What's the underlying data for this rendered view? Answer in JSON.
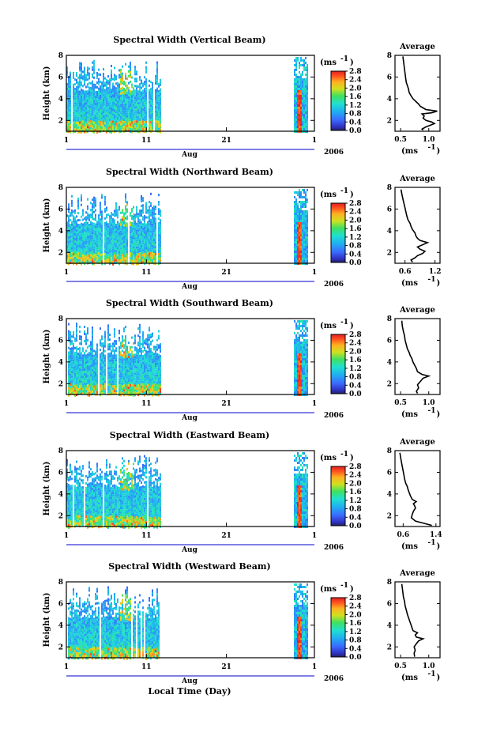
{
  "chart_data": [
    {
      "type": "heatmap",
      "title": "Spectral Width (Vertical Beam)",
      "ylabel": "Height (km)",
      "ylim": [
        1,
        8
      ],
      "yticks": [
        "2",
        "4",
        "6",
        "8"
      ],
      "xticks": [
        "1",
        "11",
        "21",
        "1"
      ],
      "xlabel2": "Aug",
      "year": "2006",
      "colorbar": {
        "unit": "(ms",
        "unit_sup": "-1",
        "unit_close": ")",
        "ticks": [
          "0.0",
          "0.4",
          "0.8",
          "1.2",
          "1.6",
          "2.0",
          "2.4",
          "2.8"
        ],
        "range": [
          0,
          2.8
        ]
      },
      "average": {
        "title": "Average",
        "xlabel": "(ms",
        "xlabel_sup": "-1",
        "xlabel_close": ")",
        "xticks": [
          "0.5",
          "1.0"
        ],
        "xlim": [
          0.4,
          1.2
        ],
        "ylim": [
          1,
          8
        ],
        "yticks": [
          "2",
          "4",
          "6",
          "8"
        ],
        "profile": [
          [
            0.9,
            1.1
          ],
          [
            0.88,
            1.2
          ],
          [
            0.95,
            1.4
          ],
          [
            1.0,
            1.5
          ],
          [
            1.1,
            1.7
          ],
          [
            1.05,
            1.85
          ],
          [
            0.95,
            2.0
          ],
          [
            0.9,
            2.2
          ],
          [
            0.92,
            2.4
          ],
          [
            0.88,
            2.6
          ],
          [
            1.05,
            2.7
          ],
          [
            1.15,
            2.85
          ],
          [
            0.95,
            3.0
          ],
          [
            0.9,
            3.15
          ],
          [
            0.85,
            3.3
          ],
          [
            0.82,
            3.5
          ],
          [
            0.78,
            3.7
          ],
          [
            0.72,
            4.0
          ],
          [
            0.68,
            4.3
          ],
          [
            0.65,
            4.6
          ],
          [
            0.64,
            4.9
          ],
          [
            0.62,
            5.2
          ],
          [
            0.6,
            5.5
          ],
          [
            0.59,
            5.9
          ],
          [
            0.58,
            6.3
          ],
          [
            0.57,
            6.7
          ],
          [
            0.56,
            7.1
          ],
          [
            0.55,
            7.5
          ],
          [
            0.54,
            7.9
          ]
        ]
      }
    },
    {
      "type": "heatmap",
      "title": "Spectral Width (Northward Beam)",
      "ylabel": "Height (km)",
      "ylim": [
        1,
        8
      ],
      "yticks": [
        "2",
        "4",
        "6",
        "8"
      ],
      "xticks": [
        "1",
        "11",
        "21",
        "1"
      ],
      "xlabel2": "Aug",
      "year": "2006",
      "colorbar": {
        "unit": "(ms",
        "unit_sup": "-1",
        "unit_close": ")",
        "ticks": [
          "0.0",
          "0.4",
          "0.8",
          "1.2",
          "1.6",
          "2.0",
          "2.4",
          "2.8"
        ],
        "range": [
          0,
          2.8
        ]
      },
      "average": {
        "title": "Average",
        "xlabel": "(ms",
        "xlabel_sup": "-1",
        "xlabel_close": ")",
        "xticks": [
          "0.6",
          "1.2"
        ],
        "xlim": [
          0.4,
          1.3
        ],
        "ylim": [
          1,
          8
        ],
        "yticks": [
          "2",
          "4",
          "6",
          "8"
        ],
        "profile": [
          [
            0.75,
            1.1
          ],
          [
            0.72,
            1.3
          ],
          [
            0.8,
            1.5
          ],
          [
            0.85,
            1.7
          ],
          [
            0.95,
            1.9
          ],
          [
            1.0,
            2.1
          ],
          [
            0.9,
            2.3
          ],
          [
            0.85,
            2.5
          ],
          [
            0.95,
            2.7
          ],
          [
            1.05,
            2.9
          ],
          [
            0.9,
            3.1
          ],
          [
            0.85,
            3.3
          ],
          [
            0.82,
            3.5
          ],
          [
            0.8,
            3.8
          ],
          [
            0.75,
            4.1
          ],
          [
            0.72,
            4.4
          ],
          [
            0.7,
            4.7
          ],
          [
            0.66,
            5.0
          ],
          [
            0.64,
            5.3
          ],
          [
            0.62,
            5.7
          ],
          [
            0.6,
            6.1
          ],
          [
            0.58,
            6.5
          ],
          [
            0.56,
            6.9
          ],
          [
            0.54,
            7.3
          ],
          [
            0.52,
            7.8
          ]
        ]
      }
    },
    {
      "type": "heatmap",
      "title": "Spectral Width (Southward Beam)",
      "ylabel": "Height (km)",
      "ylim": [
        1,
        8
      ],
      "yticks": [
        "2",
        "4",
        "6",
        "8"
      ],
      "xticks": [
        "1",
        "11",
        "21",
        "1"
      ],
      "xlabel2": "Aug",
      "year": "2006",
      "colorbar": {
        "unit": "(ms",
        "unit_sup": "-1",
        "unit_close": ")",
        "ticks": [
          "0.0",
          "0.4",
          "0.8",
          "1.2",
          "1.6",
          "2.0",
          "2.4",
          "2.8"
        ],
        "range": [
          0,
          2.8
        ]
      },
      "average": {
        "title": "Average",
        "xlabel": "(ms",
        "xlabel_sup": "-1",
        "xlabel_close": ")",
        "xticks": [
          "0.5",
          "1.0"
        ],
        "xlim": [
          0.4,
          1.2
        ],
        "ylim": [
          1,
          8
        ],
        "yticks": [
          "2",
          "4",
          "6",
          "8"
        ],
        "profile": [
          [
            0.8,
            1.1
          ],
          [
            0.78,
            1.3
          ],
          [
            0.82,
            1.6
          ],
          [
            0.8,
            1.9
          ],
          [
            0.85,
            2.2
          ],
          [
            0.9,
            2.5
          ],
          [
            1.0,
            2.7
          ],
          [
            0.88,
            2.85
          ],
          [
            0.8,
            3.1
          ],
          [
            0.78,
            3.4
          ],
          [
            0.75,
            3.7
          ],
          [
            0.72,
            4.0
          ],
          [
            0.7,
            4.3
          ],
          [
            0.67,
            4.6
          ],
          [
            0.65,
            4.9
          ],
          [
            0.62,
            5.2
          ],
          [
            0.6,
            5.6
          ],
          [
            0.58,
            6.0
          ],
          [
            0.57,
            6.4
          ],
          [
            0.55,
            6.8
          ],
          [
            0.53,
            7.3
          ],
          [
            0.52,
            7.8
          ]
        ]
      }
    },
    {
      "type": "heatmap",
      "title": "Spectral Width (Eastward Beam)",
      "ylabel": "Height (km)",
      "ylim": [
        1,
        8
      ],
      "yticks": [
        "2",
        "4",
        "6",
        "8"
      ],
      "xticks": [
        "1",
        "11",
        "21",
        "1"
      ],
      "xlabel2": "Aug",
      "year": "2006",
      "colorbar": {
        "unit": "(ms",
        "unit_sup": "-1",
        "unit_close": ")",
        "ticks": [
          "0.0",
          "0.4",
          "0.8",
          "1.2",
          "1.6",
          "2.0",
          "2.4",
          "2.8"
        ],
        "range": [
          0,
          2.8
        ]
      },
      "average": {
        "title": "Average",
        "xlabel": "(ms",
        "xlabel_sup": "-1",
        "xlabel_close": ")",
        "xticks": [
          "0.6",
          "1.4"
        ],
        "xlim": [
          0.4,
          1.5
        ],
        "ylim": [
          1,
          8
        ],
        "yticks": [
          "2",
          "4",
          "6",
          "8"
        ],
        "profile": [
          [
            1.3,
            1.1
          ],
          [
            1.1,
            1.3
          ],
          [
            0.9,
            1.5
          ],
          [
            0.8,
            1.8
          ],
          [
            0.82,
            2.1
          ],
          [
            0.85,
            2.4
          ],
          [
            0.9,
            2.7
          ],
          [
            0.88,
            2.9
          ],
          [
            0.85,
            3.1
          ],
          [
            0.92,
            3.3
          ],
          [
            0.82,
            3.5
          ],
          [
            0.78,
            3.8
          ],
          [
            0.75,
            4.1
          ],
          [
            0.72,
            4.4
          ],
          [
            0.7,
            4.7
          ],
          [
            0.66,
            5.0
          ],
          [
            0.64,
            5.3
          ],
          [
            0.62,
            5.7
          ],
          [
            0.6,
            6.1
          ],
          [
            0.58,
            6.5
          ],
          [
            0.56,
            6.9
          ],
          [
            0.54,
            7.3
          ],
          [
            0.52,
            7.8
          ]
        ]
      }
    },
    {
      "type": "heatmap",
      "title": "Spectral Width (Westward Beam)",
      "ylabel": "Height (km)",
      "ylim": [
        1,
        8
      ],
      "yticks": [
        "2",
        "4",
        "6",
        "8"
      ],
      "xticks": [
        "1",
        "11",
        "21",
        "1"
      ],
      "xlabel2": "Aug",
      "year": "2006",
      "colorbar": {
        "unit": "(ms",
        "unit_sup": "-1",
        "unit_close": ")",
        "ticks": [
          "0.0",
          "0.4",
          "0.8",
          "1.2",
          "1.6",
          "2.0",
          "2.4",
          "2.8"
        ],
        "range": [
          0,
          2.8
        ]
      },
      "average": {
        "title": "Average",
        "xlabel": "(ms",
        "xlabel_sup": "-1",
        "xlabel_close": ")",
        "xticks": [
          "0.5",
          "1.0"
        ],
        "xlim": [
          0.4,
          1.2
        ],
        "ylim": [
          1,
          8
        ],
        "yticks": [
          "2",
          "4",
          "6",
          "8"
        ],
        "profile": [
          [
            0.75,
            1.1
          ],
          [
            0.74,
            1.4
          ],
          [
            0.76,
            1.7
          ],
          [
            0.74,
            2.0
          ],
          [
            0.78,
            2.3
          ],
          [
            0.82,
            2.55
          ],
          [
            0.9,
            2.75
          ],
          [
            0.78,
            2.9
          ],
          [
            0.76,
            3.1
          ],
          [
            0.8,
            3.3
          ],
          [
            0.72,
            3.5
          ],
          [
            0.7,
            3.8
          ],
          [
            0.68,
            4.1
          ],
          [
            0.66,
            4.4
          ],
          [
            0.64,
            4.7
          ],
          [
            0.62,
            5.0
          ],
          [
            0.6,
            5.4
          ],
          [
            0.58,
            5.8
          ],
          [
            0.57,
            6.2
          ],
          [
            0.55,
            6.6
          ],
          [
            0.54,
            7.0
          ],
          [
            0.53,
            7.4
          ],
          [
            0.52,
            7.8
          ]
        ]
      }
    }
  ],
  "footer": {
    "xlabel": "Local Time (Day)"
  }
}
